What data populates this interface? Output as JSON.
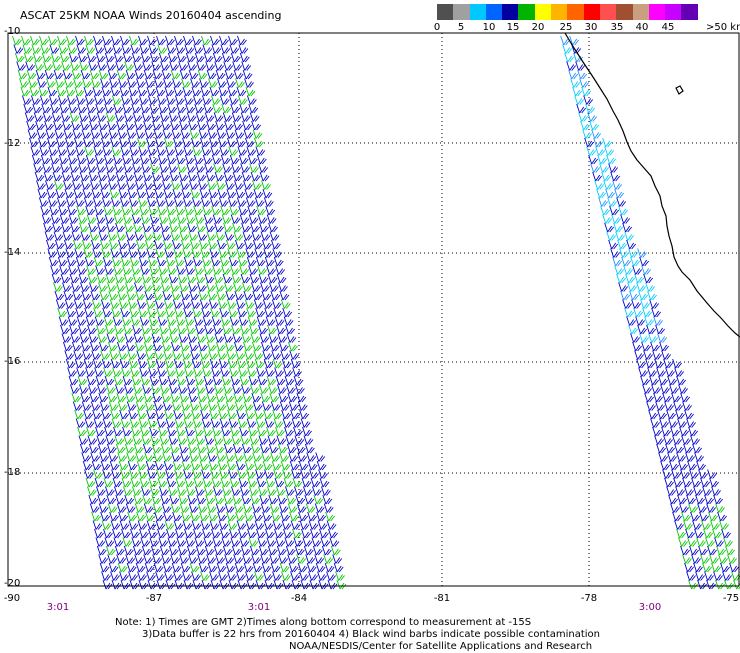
{
  "title": "ASCAT 25KM NOAA Winds 20160404 ascending",
  "legend": {
    "colors": [
      "#505050",
      "#a0a0a0",
      "#00c8ff",
      "#0064ff",
      "#00008c",
      "#00c800",
      "#98f000",
      "#f0e000",
      "#ffa000",
      "#ff5000",
      "#e00000",
      "#a00000",
      "#8c4614",
      "#c87850",
      "#ff00ff",
      "#b400c8",
      "#64008c",
      "#500050"
    ],
    "tick_labels": [
      "0",
      "5",
      "10",
      "15",
      "20",
      "25",
      "30",
      "35",
      "40",
      "45"
    ],
    "last_label": ">50",
    "units": "knots"
  },
  "map": {
    "lat_labels": [
      "-10",
      "-12",
      "-14",
      "-16",
      "-18",
      "-20"
    ],
    "lon_labels": [
      "-90",
      "-87",
      "-84",
      "-81",
      "-78",
      "-75"
    ],
    "time_labels": [
      "3:01",
      "3:01",
      "3:00"
    ],
    "barb_colors": {
      "strong": "#00c800",
      "moderate": "#0000cc",
      "light": "#1e90ff",
      "lighter": "#00ccff"
    }
  },
  "notes": {
    "line1": "Note: 1) Times are GMT 2)Times along bottom correspond to measurement at -15S",
    "line2": "3)Data buffer is 22 hrs from 20160404 4) Black wind barbs indicate possible contamination",
    "line3": "NOAA/NESDIS/Center for Satellite Applications and Research"
  }
}
